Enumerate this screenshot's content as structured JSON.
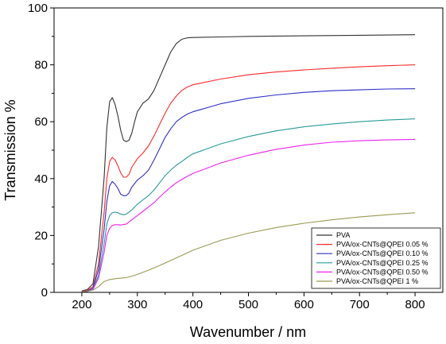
{
  "chart_data": {
    "type": "line",
    "title": "",
    "xlabel": "Wavenumber / nm",
    "ylabel": "Transmission %",
    "xlim": [
      150,
      850
    ],
    "ylim": [
      0,
      100
    ],
    "xticks": [
      200,
      300,
      400,
      500,
      600,
      700,
      800
    ],
    "yticks": [
      0,
      20,
      40,
      60,
      80,
      100
    ],
    "grid": false,
    "legend_position": "bottom-right",
    "series": [
      {
        "name": "PVA",
        "color": "#333333",
        "points": [
          [
            200,
            0.5
          ],
          [
            210,
            1
          ],
          [
            220,
            3
          ],
          [
            230,
            16
          ],
          [
            240,
            40
          ],
          [
            245,
            58
          ],
          [
            250,
            67
          ],
          [
            255,
            68.5
          ],
          [
            260,
            66
          ],
          [
            265,
            62
          ],
          [
            270,
            57
          ],
          [
            275,
            53.5
          ],
          [
            280,
            53
          ],
          [
            285,
            53.5
          ],
          [
            290,
            56
          ],
          [
            295,
            60
          ],
          [
            300,
            63.5
          ],
          [
            310,
            66.5
          ],
          [
            320,
            68
          ],
          [
            330,
            71
          ],
          [
            340,
            75.5
          ],
          [
            350,
            80
          ],
          [
            360,
            84.5
          ],
          [
            370,
            87.5
          ],
          [
            380,
            89
          ],
          [
            390,
            89.5
          ],
          [
            400,
            89.6
          ],
          [
            450,
            89.8
          ],
          [
            500,
            90
          ],
          [
            600,
            90.2
          ],
          [
            700,
            90.4
          ],
          [
            800,
            90.6
          ]
        ]
      },
      {
        "name": "PVA/ox-CNTs@QPEI 0.05 %",
        "color": "#ff2a2a",
        "points": [
          [
            200,
            0.3
          ],
          [
            210,
            0.7
          ],
          [
            220,
            2
          ],
          [
            230,
            10
          ],
          [
            240,
            28
          ],
          [
            245,
            40
          ],
          [
            250,
            46
          ],
          [
            255,
            47.5
          ],
          [
            260,
            46.5
          ],
          [
            265,
            44.5
          ],
          [
            270,
            42
          ],
          [
            275,
            40.5
          ],
          [
            280,
            40.5
          ],
          [
            285,
            41.5
          ],
          [
            290,
            44
          ],
          [
            300,
            47
          ],
          [
            310,
            49
          ],
          [
            320,
            51.5
          ],
          [
            330,
            55
          ],
          [
            340,
            59
          ],
          [
            350,
            63
          ],
          [
            360,
            66.5
          ],
          [
            370,
            69
          ],
          [
            380,
            71
          ],
          [
            390,
            72.2
          ],
          [
            400,
            73
          ],
          [
            450,
            75
          ],
          [
            500,
            76.5
          ],
          [
            550,
            77.5
          ],
          [
            600,
            78.2
          ],
          [
            650,
            78.8
          ],
          [
            700,
            79.3
          ],
          [
            750,
            79.7
          ],
          [
            800,
            80
          ]
        ]
      },
      {
        "name": "PVA/ox-CNTs@QPEI 0.10 %",
        "color": "#3030c8",
        "points": [
          [
            200,
            0.2
          ],
          [
            210,
            0.5
          ],
          [
            220,
            1.5
          ],
          [
            230,
            8
          ],
          [
            240,
            22
          ],
          [
            245,
            32
          ],
          [
            250,
            37.5
          ],
          [
            255,
            39
          ],
          [
            260,
            38
          ],
          [
            265,
            36.5
          ],
          [
            270,
            34.5
          ],
          [
            275,
            34
          ],
          [
            280,
            34
          ],
          [
            285,
            35
          ],
          [
            290,
            37
          ],
          [
            300,
            39.5
          ],
          [
            310,
            41
          ],
          [
            320,
            43
          ],
          [
            330,
            46.5
          ],
          [
            340,
            50.5
          ],
          [
            350,
            54.5
          ],
          [
            360,
            57.5
          ],
          [
            370,
            60
          ],
          [
            380,
            61.5
          ],
          [
            390,
            62.7
          ],
          [
            400,
            63.5
          ],
          [
            450,
            66.3
          ],
          [
            500,
            68.2
          ],
          [
            550,
            69.4
          ],
          [
            600,
            70.3
          ],
          [
            650,
            70.9
          ],
          [
            700,
            71.2
          ],
          [
            750,
            71.5
          ],
          [
            800,
            71.6
          ]
        ]
      },
      {
        "name": "PVA/ox-CNTs@QPEI 0.25 %",
        "color": "#2a9a9a",
        "points": [
          [
            200,
            0.2
          ],
          [
            210,
            0.4
          ],
          [
            220,
            1.2
          ],
          [
            230,
            6
          ],
          [
            240,
            17
          ],
          [
            245,
            24
          ],
          [
            250,
            27
          ],
          [
            255,
            28
          ],
          [
            260,
            28.2
          ],
          [
            265,
            28
          ],
          [
            270,
            27.5
          ],
          [
            275,
            27.3
          ],
          [
            280,
            27.5
          ],
          [
            290,
            29
          ],
          [
            300,
            31
          ],
          [
            310,
            32.5
          ],
          [
            320,
            34
          ],
          [
            330,
            36
          ],
          [
            340,
            38.5
          ],
          [
            350,
            41
          ],
          [
            360,
            43
          ],
          [
            370,
            44.7
          ],
          [
            380,
            46
          ],
          [
            390,
            47.5
          ],
          [
            400,
            48.7
          ],
          [
            450,
            52.2
          ],
          [
            500,
            54.8
          ],
          [
            550,
            56.8
          ],
          [
            600,
            58.2
          ],
          [
            650,
            59.2
          ],
          [
            700,
            60
          ],
          [
            750,
            60.6
          ],
          [
            800,
            61
          ]
        ]
      },
      {
        "name": "PVA/ox-CNTs@QPEI 0.50 %",
        "color": "#ee22ee",
        "points": [
          [
            200,
            0.1
          ],
          [
            210,
            0.3
          ],
          [
            220,
            1
          ],
          [
            230,
            5
          ],
          [
            240,
            14
          ],
          [
            245,
            20
          ],
          [
            250,
            22.5
          ],
          [
            255,
            23.5
          ],
          [
            260,
            23.8
          ],
          [
            265,
            23.8
          ],
          [
            270,
            23.7
          ],
          [
            280,
            24
          ],
          [
            290,
            25.5
          ],
          [
            300,
            27
          ],
          [
            310,
            28.5
          ],
          [
            320,
            30
          ],
          [
            330,
            31.5
          ],
          [
            340,
            33.5
          ],
          [
            350,
            35.3
          ],
          [
            360,
            37
          ],
          [
            370,
            38.5
          ],
          [
            380,
            39.7
          ],
          [
            390,
            40.8
          ],
          [
            400,
            41.8
          ],
          [
            450,
            45.5
          ],
          [
            500,
            48.2
          ],
          [
            550,
            50.3
          ],
          [
            600,
            51.8
          ],
          [
            650,
            52.8
          ],
          [
            700,
            53.3
          ],
          [
            750,
            53.6
          ],
          [
            800,
            53.8
          ]
        ]
      },
      {
        "name": "PVA/ox-CNTs@QPEI 1 %",
        "color": "#9a9a55",
        "points": [
          [
            200,
            0.1
          ],
          [
            210,
            0.3
          ],
          [
            220,
            0.8
          ],
          [
            230,
            2
          ],
          [
            240,
            3.8
          ],
          [
            250,
            4.5
          ],
          [
            260,
            4.8
          ],
          [
            270,
            5
          ],
          [
            280,
            5.2
          ],
          [
            290,
            5.7
          ],
          [
            300,
            6.3
          ],
          [
            320,
            7.8
          ],
          [
            340,
            9.4
          ],
          [
            360,
            11.2
          ],
          [
            380,
            13
          ],
          [
            400,
            14.8
          ],
          [
            450,
            18.3
          ],
          [
            500,
            20.8
          ],
          [
            550,
            22.8
          ],
          [
            600,
            24.3
          ],
          [
            650,
            25.5
          ],
          [
            700,
            26.5
          ],
          [
            750,
            27.3
          ],
          [
            800,
            28
          ]
        ]
      }
    ]
  }
}
